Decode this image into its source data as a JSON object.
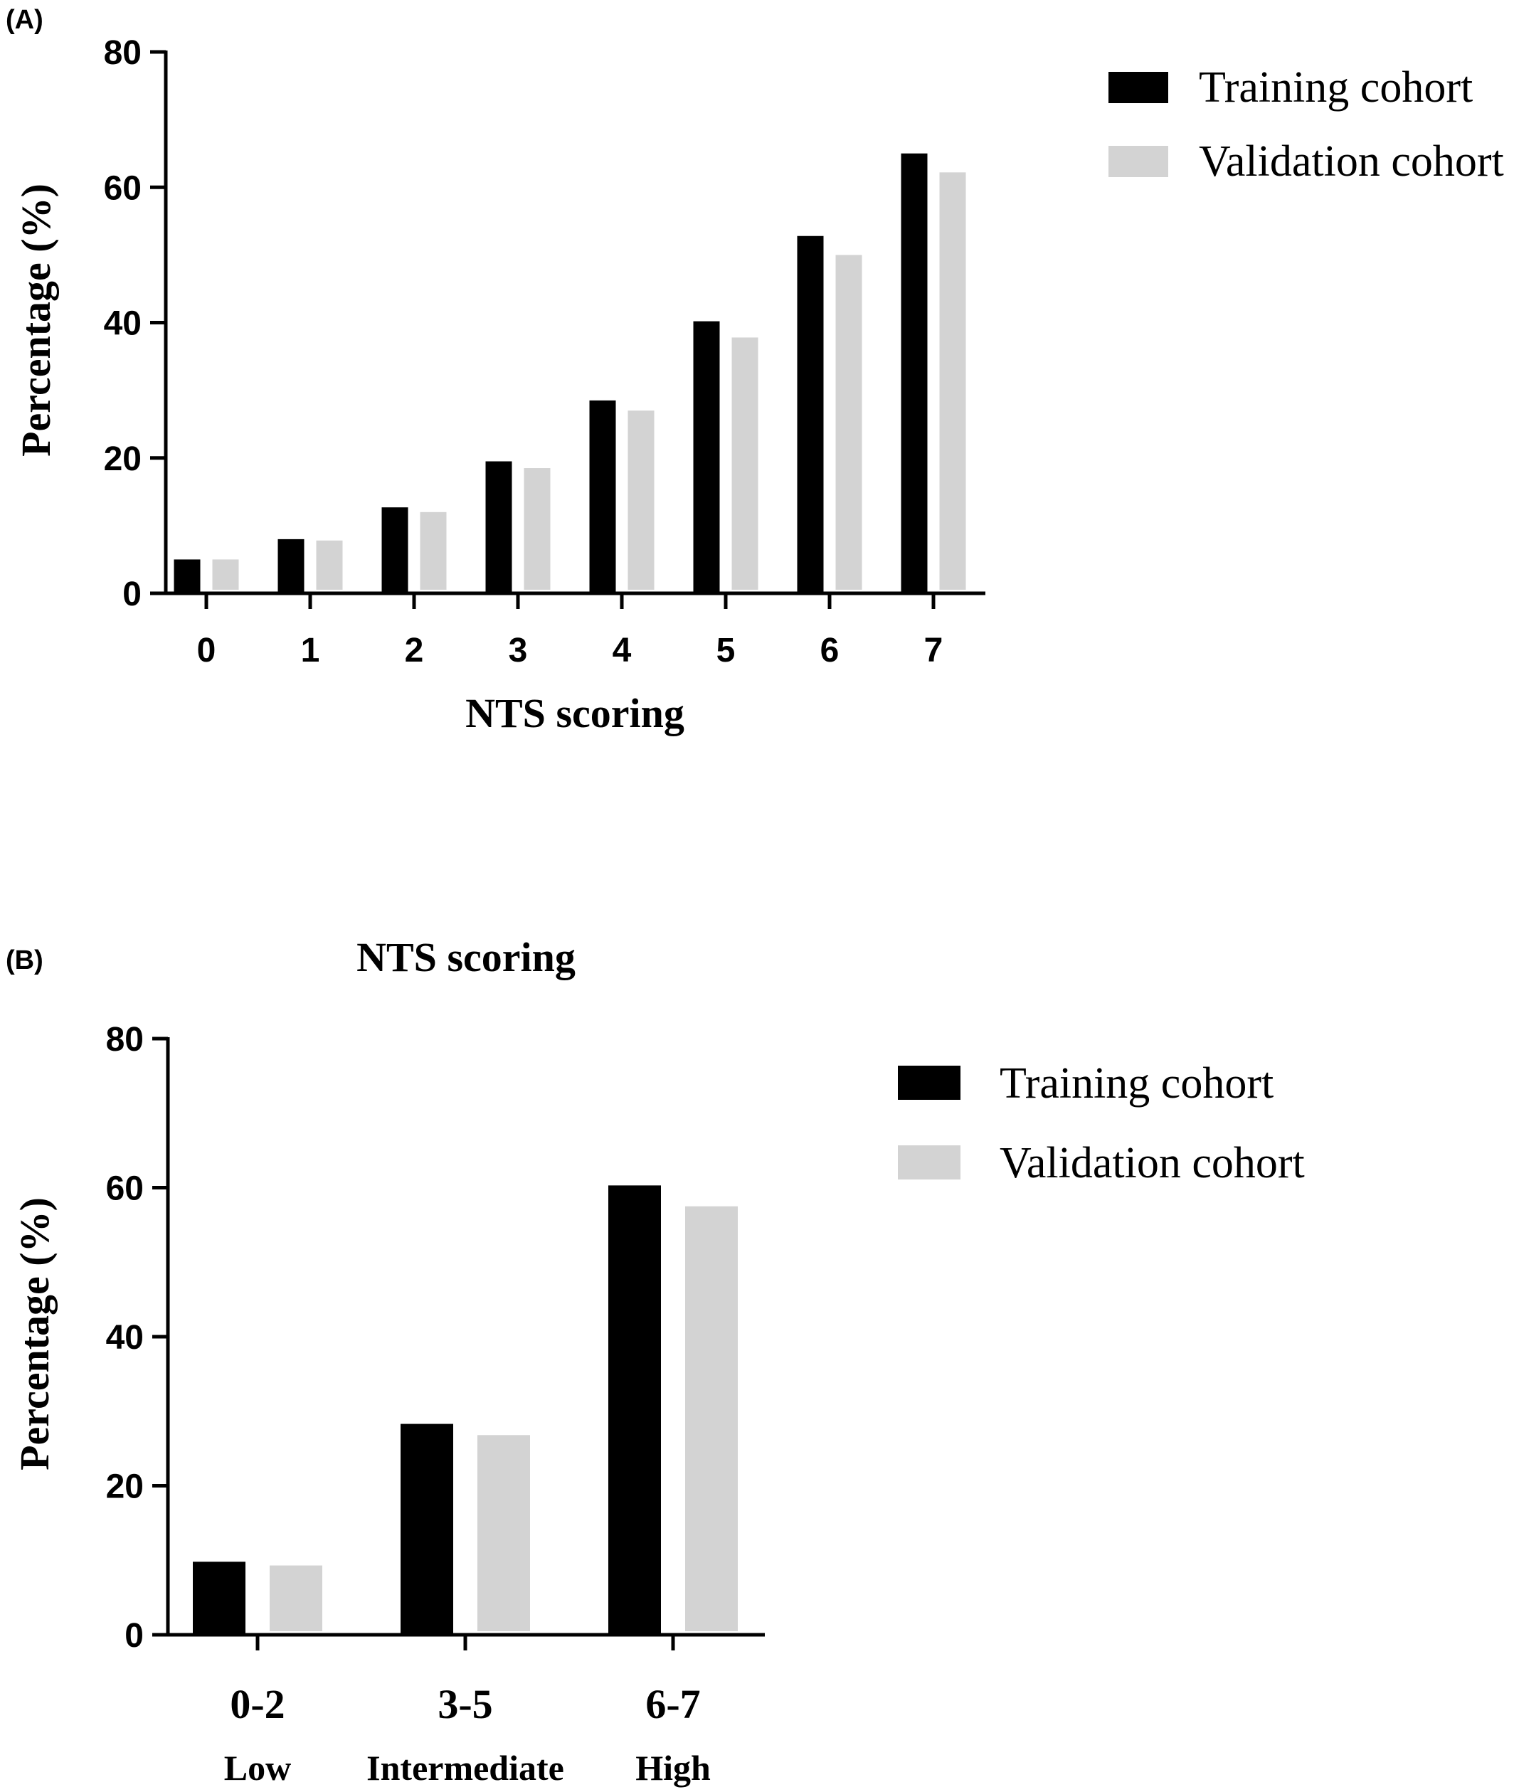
{
  "colors": {
    "training": "#000000",
    "validation": "#d3d3d3",
    "axis": "#000000"
  },
  "chart_data": [
    {
      "panel": "(A)",
      "type": "bar",
      "title": "",
      "xlabel": "NTS scoring",
      "ylabel": "Percentage (%)",
      "ylim": [
        0,
        80
      ],
      "yticks": [
        0,
        20,
        40,
        60,
        80
      ],
      "categories": [
        "0",
        "1",
        "2",
        "3",
        "4",
        "5",
        "6",
        "7"
      ],
      "sublabels": [],
      "series": [
        {
          "name": "Training cohort",
          "values": [
            5,
            8,
            12.7,
            19.5,
            28.5,
            40.2,
            52.8,
            65
          ]
        },
        {
          "name": "Validation cohort",
          "values": [
            5,
            7.8,
            12,
            18.5,
            27,
            37.8,
            50,
            62.2
          ]
        }
      ],
      "grid": false,
      "legend": "top-right"
    },
    {
      "panel": "(B)",
      "type": "bar",
      "title": "NTS scoring",
      "xlabel": "",
      "ylabel": "Percentage (%)",
      "ylim": [
        0,
        80
      ],
      "yticks": [
        0,
        20,
        40,
        60,
        80
      ],
      "categories": [
        "0-2",
        "3-5",
        "6-7"
      ],
      "sublabels": [
        "Low",
        "Intermediate",
        "High"
      ],
      "series": [
        {
          "name": "Training cohort",
          "values": [
            9.8,
            28.3,
            60.3
          ]
        },
        {
          "name": "Validation cohort",
          "values": [
            9.3,
            26.8,
            57.5
          ]
        }
      ],
      "grid": false,
      "legend": "top-right"
    }
  ]
}
